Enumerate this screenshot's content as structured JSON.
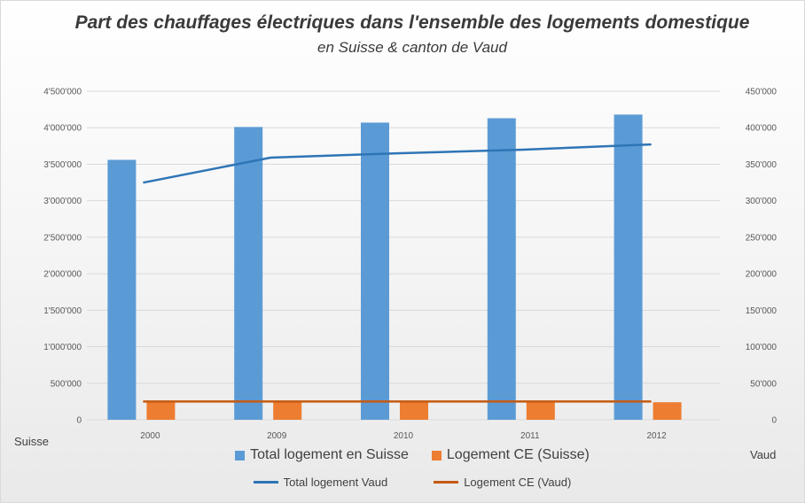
{
  "title": "Part des chauffages électriques dans l'ensemble des logements domestique",
  "subtitle": "en Suisse & canton de Vaud",
  "axis_left_label": "Suisse",
  "axis_right_label": "Vaud",
  "legend": {
    "bar_total": "Total logement en Suisse",
    "bar_ce": "Logement CE (Suisse)",
    "line_total": "Total logement Vaud",
    "line_ce": "Logement CE (Vaud)"
  },
  "colors": {
    "blue_bar": "#5b9bd5",
    "orange_bar": "#ed7d31",
    "blue_line": "#2e75b6",
    "orange_line": "#c55a11",
    "grid": "#d9d9d9"
  },
  "chart_data": {
    "type": "bar",
    "categories": [
      "2000",
      "2009",
      "2010",
      "2011",
      "2012"
    ],
    "series": [
      {
        "name": "Total logement en Suisse",
        "axis": "left",
        "type": "bar",
        "values": [
          3560000,
          4010000,
          4070000,
          4130000,
          4180000
        ]
      },
      {
        "name": "Logement CE (Suisse)",
        "axis": "left",
        "type": "bar",
        "values": [
          240000,
          240000,
          240000,
          240000,
          240000
        ]
      },
      {
        "name": "Total logement Vaud",
        "axis": "right",
        "type": "line",
        "values": [
          325000,
          359000,
          365000,
          370000,
          377000
        ]
      },
      {
        "name": "Logement CE (Vaud)",
        "axis": "right",
        "type": "line",
        "values": [
          25000,
          25000,
          25000,
          25000,
          25000
        ]
      }
    ],
    "y_left": {
      "min": 0,
      "max": 4500000,
      "ticks": [
        0,
        500000,
        1000000,
        1500000,
        2000000,
        2500000,
        3000000,
        3500000,
        4000000,
        4500000
      ],
      "tick_labels": [
        "0",
        "500'000",
        "1'000'000",
        "1'500'000",
        "2'000'000",
        "2'500'000",
        "3'000'000",
        "3'500'000",
        "4'000'000",
        "4'500'000"
      ]
    },
    "y_right": {
      "min": 0,
      "max": 450000,
      "ticks": [
        0,
        50000,
        100000,
        150000,
        200000,
        250000,
        300000,
        350000,
        400000,
        450000
      ],
      "tick_labels": [
        "0",
        "50'000",
        "100'000",
        "150'000",
        "200'000",
        "250'000",
        "300'000",
        "350'000",
        "400'000",
        "450'000"
      ]
    },
    "grid": true,
    "legend_position": "bottom"
  }
}
